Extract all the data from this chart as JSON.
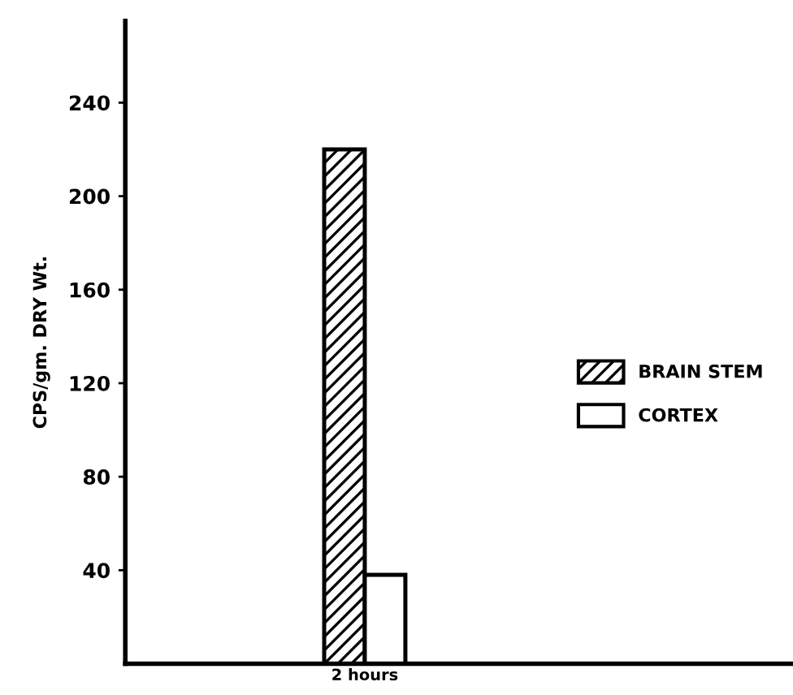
{
  "chart_data": {
    "type": "bar",
    "ylabel": "CPS/gm. DRY Wt.",
    "categories": [
      "2 hours"
    ],
    "series": [
      {
        "name": "BRAIN STEM",
        "color": "#000000",
        "values": [
          220
        ]
      },
      {
        "name": "CORTEX",
        "color": "#ffffff",
        "values": [
          38
        ]
      }
    ],
    "ylim": [
      0,
      275
    ],
    "yticks": [
      40,
      80,
      120,
      160,
      200,
      240
    ],
    "grid": false,
    "legend": "right"
  }
}
